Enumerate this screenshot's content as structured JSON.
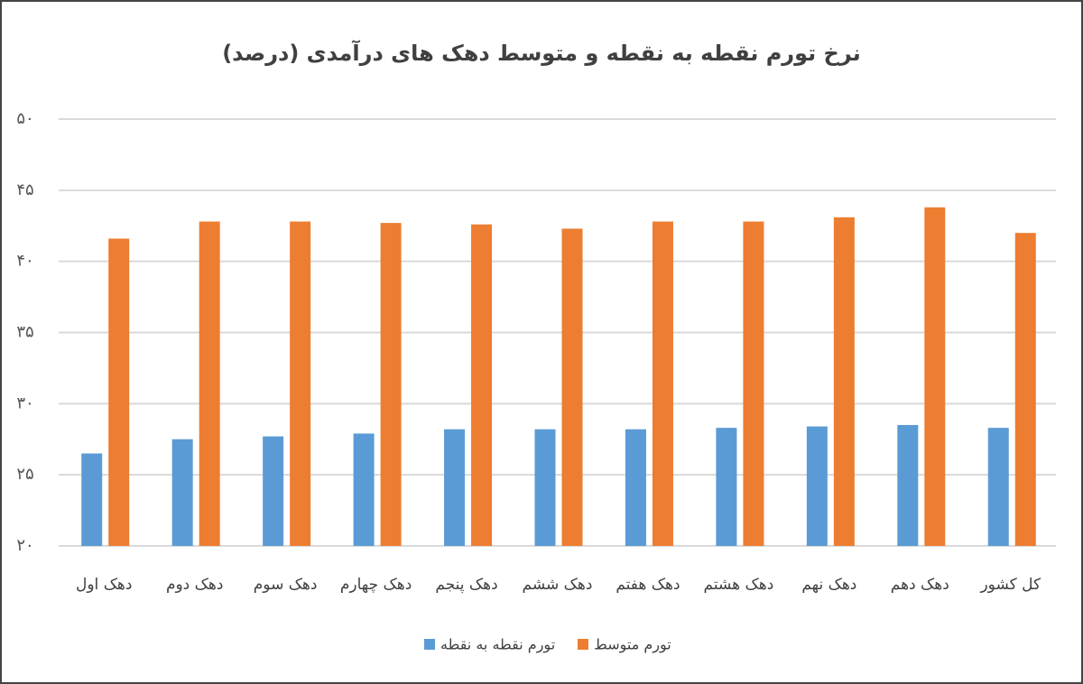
{
  "chart_data": {
    "type": "bar",
    "title": "نرخ تورم نقطه به نقطه و متوسط دهک های درآمدی (درصد)",
    "categories": [
      "دهک اول",
      "دهک دوم",
      "دهک سوم",
      "دهک چهارم",
      "دهک پنجم",
      "دهک ششم",
      "دهک هفتم",
      "دهک هشتم",
      "دهک نهم",
      "دهک دهم",
      "کل کشور"
    ],
    "series": [
      {
        "name": "تورم نقطه به نقطه",
        "color": "#5b9bd5",
        "values": [
          26.5,
          27.5,
          27.7,
          27.9,
          28.2,
          28.2,
          28.2,
          28.3,
          28.4,
          28.5,
          28.3
        ]
      },
      {
        "name": "تورم متوسط",
        "color": "#ed7d31",
        "values": [
          41.6,
          42.8,
          42.8,
          42.7,
          42.6,
          42.3,
          42.8,
          42.8,
          43.1,
          43.8,
          42.0
        ]
      }
    ],
    "ylim": [
      20,
      50
    ],
    "yticks": [
      {
        "value": 20,
        "label": "۲۰"
      },
      {
        "value": 25,
        "label": "۲۵"
      },
      {
        "value": 30,
        "label": "۳۰"
      },
      {
        "value": 35,
        "label": "۳۵"
      },
      {
        "value": 40,
        "label": "۴۰"
      },
      {
        "value": 45,
        "label": "۴۵"
      },
      {
        "value": 50,
        "label": "۵۰"
      }
    ],
    "grid": true,
    "legend": "bottom"
  }
}
